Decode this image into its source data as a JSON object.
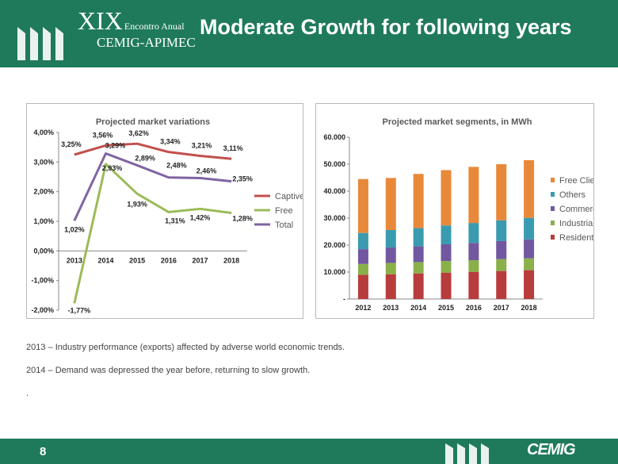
{
  "header": {
    "event_numeral": "XIX",
    "event_name": "Encontro Anual",
    "event_org": "CEMIG-APIMEC",
    "title": "Moderate Growth for following years"
  },
  "notes": [
    "2013 – Industry performance (exports) affected by adverse world economic trends.",
    "2014 – Demand was depressed  the year before, returning to slow growth.",
    "."
  ],
  "footer": {
    "page_number": "8",
    "brand": "CEMIG"
  },
  "colors": {
    "header_bg": "#1f7a5c",
    "captive": "#c0504d",
    "free": "#9bbb59",
    "total": "#8064a2",
    "free_clients": "#e8893a",
    "others": "#3a9bb0",
    "commercial": "#7158a0",
    "industrial": "#8ab04a",
    "residential": "#b83c3c"
  },
  "chart_data": [
    {
      "type": "line",
      "title": "Projected market variations",
      "x": [
        "2013",
        "2014",
        "2015",
        "2016",
        "2017",
        "2018"
      ],
      "ylim": [
        -2,
        4
      ],
      "yticks": [
        "-2,00%",
        "-1,00%",
        "0,00%",
        "1,00%",
        "2,00%",
        "3,00%",
        "4,00%"
      ],
      "grid": false,
      "legend": "right",
      "series": [
        {
          "name": "Captive",
          "values": [
            3.25,
            3.56,
            3.62,
            3.34,
            3.21,
            3.11
          ],
          "labels": [
            "3,25%",
            "3,56%",
            "3,62%",
            "3,34%",
            "3,21%",
            "3,11%"
          ]
        },
        {
          "name": "Free",
          "values": [
            -1.77,
            2.93,
            1.93,
            1.31,
            1.42,
            1.28
          ],
          "labels": [
            "-1,77%",
            "2,93%",
            "1,93%",
            "1,31%",
            "1,42%",
            "1,28%"
          ]
        },
        {
          "name": "Total",
          "values": [
            1.02,
            3.29,
            2.89,
            2.48,
            2.46,
            2.35
          ],
          "labels": [
            "1,02%",
            "3,29%",
            "2,89%",
            "2,48%",
            "2,46%",
            "2,35%"
          ]
        }
      ]
    },
    {
      "type": "bar",
      "stacked": true,
      "title": "Projected market segments, in MWh",
      "categories": [
        "2012",
        "2013",
        "2014",
        "2015",
        "2016",
        "2017",
        "2018"
      ],
      "ylim": [
        0,
        60000
      ],
      "yticks": [
        "-",
        "10.000",
        "20.000",
        "30.000",
        "40.000",
        "50.000",
        "60.000"
      ],
      "grid": false,
      "legend": "right",
      "series": [
        {
          "name": "Residential",
          "values": [
            9000,
            9200,
            9500,
            9800,
            10100,
            10400,
            10700
          ]
        },
        {
          "name": "Industrial",
          "values": [
            4000,
            4200,
            4200,
            4300,
            4300,
            4400,
            4400
          ]
        },
        {
          "name": "Commercial",
          "values": [
            5500,
            5700,
            5900,
            6200,
            6400,
            6700,
            7000
          ]
        },
        {
          "name": "Others",
          "values": [
            6000,
            6500,
            6700,
            7000,
            7400,
            7700,
            8000
          ]
        },
        {
          "name": "Free Clients",
          "values": [
            20000,
            19300,
            20100,
            20500,
            20800,
            20800,
            21400
          ]
        }
      ],
      "legend_order": [
        "Free Clients",
        "Others",
        "Commercial",
        "Industrial",
        "Residential"
      ]
    }
  ]
}
